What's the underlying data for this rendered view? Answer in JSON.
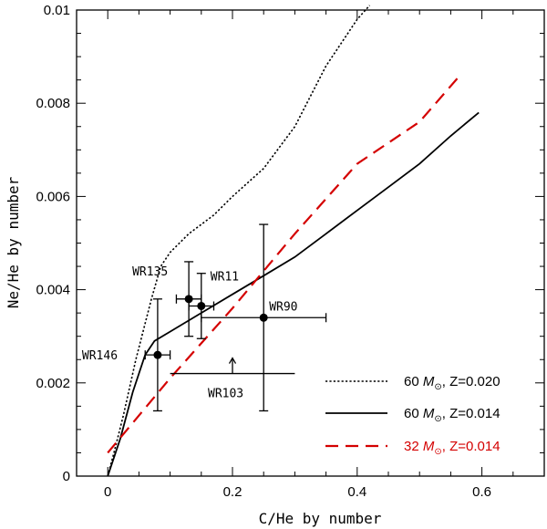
{
  "chart_data": {
    "type": "scatter",
    "title": "",
    "xlabel": "C/He by number",
    "ylabel": "Ne/He by number",
    "xlim": [
      -0.05,
      0.7
    ],
    "ylim": [
      0,
      0.01
    ],
    "x_ticks": [
      0,
      0.2,
      0.4,
      0.6
    ],
    "x_tick_labels": [
      "0",
      "0.2",
      "0.4",
      "0.6"
    ],
    "y_ticks": [
      0,
      0.002,
      0.004,
      0.006,
      0.008,
      0.01
    ],
    "y_tick_labels": [
      "0",
      "0.002",
      "0.004",
      "0.006",
      "0.008",
      "0.01"
    ],
    "grid": false,
    "legend_position": "bottom-right",
    "series": [
      {
        "name": "60 M⊙, Z=0.020",
        "label_main": "60 ",
        "label_sym": "M",
        "label_sub": "⊙",
        "label_rest": ", Z=0.020",
        "style": "dotted",
        "color": "#000000",
        "points": [
          [
            0,
            0
          ],
          [
            0.01,
            0.0005
          ],
          [
            0.025,
            0.0013
          ],
          [
            0.045,
            0.0025
          ],
          [
            0.07,
            0.0038
          ],
          [
            0.085,
            0.0045
          ],
          [
            0.1,
            0.0048
          ],
          [
            0.13,
            0.0052
          ],
          [
            0.17,
            0.0056
          ],
          [
            0.2,
            0.006
          ],
          [
            0.25,
            0.0066
          ],
          [
            0.3,
            0.0075
          ],
          [
            0.35,
            0.0088
          ],
          [
            0.4,
            0.0098
          ],
          [
            0.42,
            0.0101
          ]
        ]
      },
      {
        "name": "60 M⊙, Z=0.014",
        "label_main": "60 ",
        "label_sym": "M",
        "label_sub": "⊙",
        "label_rest": ", Z=0.014",
        "style": "solid",
        "color": "#000000",
        "points": [
          [
            0,
            0
          ],
          [
            0.02,
            0.0008
          ],
          [
            0.04,
            0.0018
          ],
          [
            0.06,
            0.0026
          ],
          [
            0.075,
            0.0029
          ],
          [
            0.1,
            0.0031
          ],
          [
            0.15,
            0.0035
          ],
          [
            0.2,
            0.0039
          ],
          [
            0.25,
            0.0043
          ],
          [
            0.3,
            0.0047
          ],
          [
            0.35,
            0.0052
          ],
          [
            0.4,
            0.0057
          ],
          [
            0.45,
            0.0062
          ],
          [
            0.5,
            0.0067
          ],
          [
            0.55,
            0.0073
          ],
          [
            0.595,
            0.0078
          ]
        ]
      },
      {
        "name": "32 M⊙, Z=0.014",
        "label_main": "32 ",
        "label_sym": "M",
        "label_sub": "⊙",
        "label_rest": ", Z=0.014",
        "style": "dashed",
        "color": "#d40000",
        "points": [
          [
            0,
            0.0005
          ],
          [
            0.1,
            0.0021
          ],
          [
            0.2,
            0.0036
          ],
          [
            0.3,
            0.0052
          ],
          [
            0.4,
            0.0067
          ],
          [
            0.5,
            0.0076
          ],
          [
            0.565,
            0.0086
          ]
        ]
      }
    ],
    "stars": [
      {
        "name": "WR146",
        "x": 0.08,
        "y": 0.0026,
        "xerr": [
          0.02,
          0.02
        ],
        "yerr": [
          0.0012,
          0.0012
        ],
        "label_dx": -83,
        "label_dy": 5
      },
      {
        "name": "WR135",
        "x": 0.13,
        "y": 0.0038,
        "xerr": [
          0.02,
          0.02
        ],
        "yerr": [
          0.0008,
          0.0008
        ],
        "label_dx": -62,
        "label_dy": -26
      },
      {
        "name": "WR11",
        "x": 0.15,
        "y": 0.00365,
        "xerr": [
          0.02,
          0.02
        ],
        "yerr": [
          0.0007,
          0.0007
        ],
        "label_dx": 10,
        "label_dy": -28
      },
      {
        "name": "WR90",
        "x": 0.25,
        "y": 0.0034,
        "xerr": [
          0.1,
          0.1
        ],
        "yerr": [
          0.002,
          0.002
        ],
        "label_dx": 6,
        "label_dy": -8
      },
      {
        "name": "WR103",
        "x": 0.2,
        "y": 0.0022,
        "xerr": [
          0.1,
          0.1
        ],
        "yerr": [
          0,
          0
        ],
        "lower_limit": true,
        "no_marker": true,
        "label_dx": -27,
        "label_dy": 26
      }
    ]
  }
}
